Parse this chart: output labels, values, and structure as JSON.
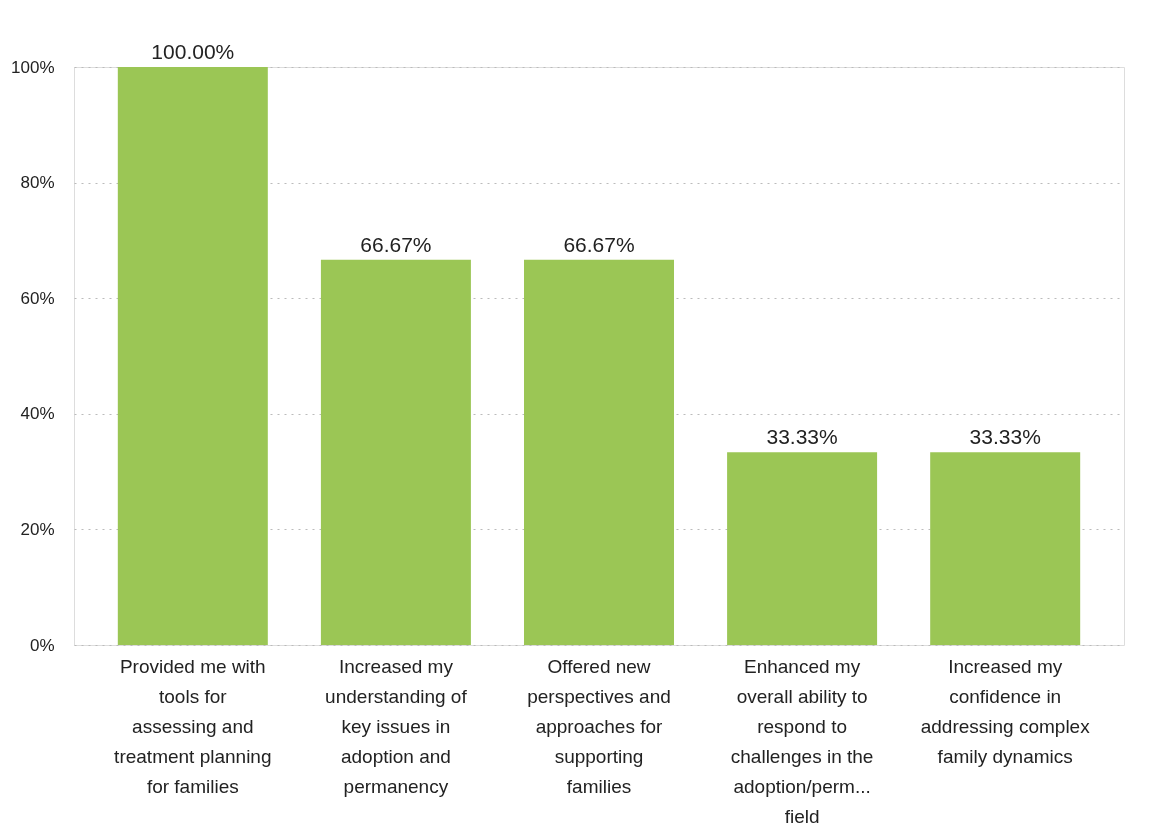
{
  "chart_data": {
    "type": "bar",
    "categories": [
      "Provided me with tools for assessing and treatment planning for families",
      "Increased my understanding of key issues in adoption and permanency",
      "Offered new perspectives and approaches for supporting families",
      "Enhanced my overall ability to respond to challenges in the adoption/perm... field",
      "Increased my confidence in addressing complex family dynamics"
    ],
    "values": [
      100,
      66.67,
      66.67,
      33.33,
      33.33
    ],
    "value_labels": [
      "100.00%",
      "66.67%",
      "66.67%",
      "33.33%",
      "33.33%"
    ],
    "color": "#9bc655",
    "ylim": [
      0,
      100
    ],
    "yticks": [
      {
        "value": 0,
        "label": "0%"
      },
      {
        "value": 20,
        "label": "20%"
      },
      {
        "value": 40,
        "label": "40%"
      },
      {
        "value": 60,
        "label": "60%"
      },
      {
        "value": 80,
        "label": "80%"
      },
      {
        "value": 100,
        "label": "100%"
      }
    ],
    "grid": "y"
  }
}
